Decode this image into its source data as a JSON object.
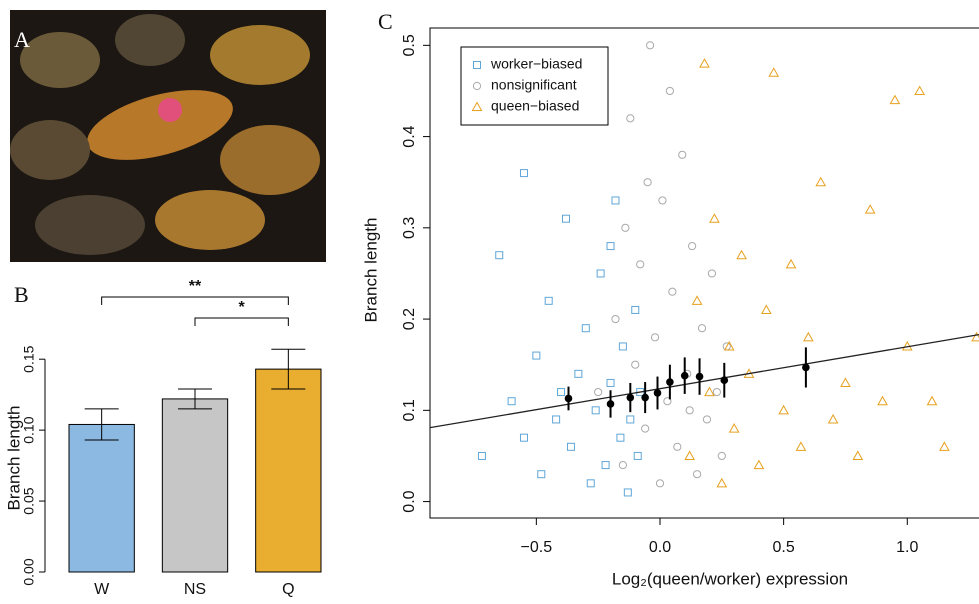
{
  "image_panel": {
    "label": "A"
  },
  "chart_data": [
    {
      "type": "bar",
      "panel_label": "B",
      "y_label": "Branch length",
      "categories": [
        "W",
        "NS",
        "Q"
      ],
      "values": [
        0.104,
        0.122,
        0.143
      ],
      "errors": [
        0.011,
        0.007,
        0.014
      ],
      "colors": [
        "#8bb9e2",
        "#c6c6c6",
        "#e9ad30"
      ],
      "ylim": [
        0,
        0.16
      ],
      "yticks": [
        {
          "value": 0,
          "label": "0.00"
        },
        {
          "value": 0.05,
          "label": "0.05"
        },
        {
          "value": 0.1,
          "label": "0.10"
        },
        {
          "value": 0.15,
          "label": "0.15"
        }
      ],
      "significance": [
        "**",
        "*"
      ]
    },
    {
      "type": "scatter",
      "panel_label": "C",
      "x_label": "Log₂(queen/worker) expression",
      "y_label": "Branch length",
      "xlim": [
        -0.93,
        1.29
      ],
      "ylim": [
        -0.018,
        0.519
      ],
      "xticks": [
        {
          "value": -0.5,
          "label": "−0.5"
        },
        {
          "value": 0,
          "label": "0.0"
        },
        0.5,
        {
          "value": 1,
          "label": "1.0"
        }
      ],
      "yticks": [
        {
          "value": 0,
          "label": "0.0"
        },
        0.1,
        0.2,
        0.3,
        0.4,
        0.5
      ],
      "legend": "top-left",
      "series": [
        {
          "name": "worker−biased",
          "marker": "square",
          "color": "#5fa6d8",
          "x": [
            -0.72,
            -0.65,
            -0.6,
            -0.55,
            -0.5,
            -0.48,
            -0.45,
            -0.42,
            -0.38,
            -0.36,
            -0.33,
            -0.3,
            -0.28,
            -0.26,
            -0.24,
            -0.22,
            -0.2,
            -0.18,
            -0.16,
            -0.15,
            -0.13,
            -0.12,
            -0.1,
            -0.09,
            -0.08,
            -0.55,
            -0.4,
            -0.2
          ],
          "values": [
            0.05,
            0.27,
            0.11,
            0.36,
            0.16,
            0.03,
            0.22,
            0.09,
            0.31,
            0.06,
            0.14,
            0.19,
            0.02,
            0.1,
            0.25,
            0.04,
            0.13,
            0.33,
            0.07,
            0.17,
            0.01,
            0.09,
            0.21,
            0.05,
            0.12,
            0.07,
            0.12,
            0.28
          ]
        },
        {
          "name": "nonsignificant",
          "marker": "circle",
          "color": "#a9a9a9",
          "x": [
            -0.25,
            -0.18,
            -0.15,
            -0.12,
            -0.1,
            -0.08,
            -0.06,
            -0.04,
            -0.02,
            0,
            0.01,
            0.03,
            0.05,
            0.07,
            0.09,
            0.11,
            0.13,
            0.15,
            0.17,
            0.19,
            0.21,
            0.23,
            0.25,
            0.27,
            -0.05,
            0.04,
            0.12,
            -0.14
          ],
          "values": [
            0.12,
            0.2,
            0.04,
            0.42,
            0.15,
            0.26,
            0.08,
            0.5,
            0.18,
            0.02,
            0.33,
            0.11,
            0.23,
            0.06,
            0.38,
            0.14,
            0.28,
            0.03,
            0.19,
            0.09,
            0.25,
            0.12,
            0.05,
            0.17,
            0.35,
            0.45,
            0.1,
            0.3
          ]
        },
        {
          "name": "queen−biased",
          "marker": "triangle",
          "color": "#e6a11f",
          "x": [
            0.12,
            0.15,
            0.18,
            0.2,
            0.22,
            0.25,
            0.28,
            0.3,
            0.33,
            0.36,
            0.4,
            0.43,
            0.46,
            0.5,
            0.53,
            0.57,
            0.6,
            0.65,
            0.7,
            0.75,
            0.8,
            0.85,
            0.9,
            0.95,
            1.0,
            1.05,
            1.1,
            1.15,
            1.28
          ],
          "values": [
            0.05,
            0.22,
            0.48,
            0.12,
            0.31,
            0.02,
            0.17,
            0.08,
            0.27,
            0.14,
            0.04,
            0.21,
            0.47,
            0.1,
            0.26,
            0.06,
            0.18,
            0.35,
            0.09,
            0.13,
            0.05,
            0.32,
            0.11,
            0.44,
            0.17,
            0.45,
            0.11,
            0.06,
            0.18
          ]
        }
      ],
      "means": {
        "x": [
          -0.37,
          -0.2,
          -0.12,
          -0.06,
          -0.01,
          0.04,
          0.1,
          0.16,
          0.26,
          0.59
        ],
        "values": [
          0.113,
          0.107,
          0.114,
          0.114,
          0.119,
          0.131,
          0.138,
          0.137,
          0.133,
          0.147
        ],
        "errors": [
          0.013,
          0.015,
          0.016,
          0.017,
          0.018,
          0.019,
          0.02,
          0.02,
          0.019,
          0.022
        ],
        "color": "#000000"
      },
      "trend_line": {
        "x": [
          -0.93,
          1.29
        ],
        "y": [
          0.081,
          0.183
        ],
        "color": "#222222"
      }
    }
  ]
}
